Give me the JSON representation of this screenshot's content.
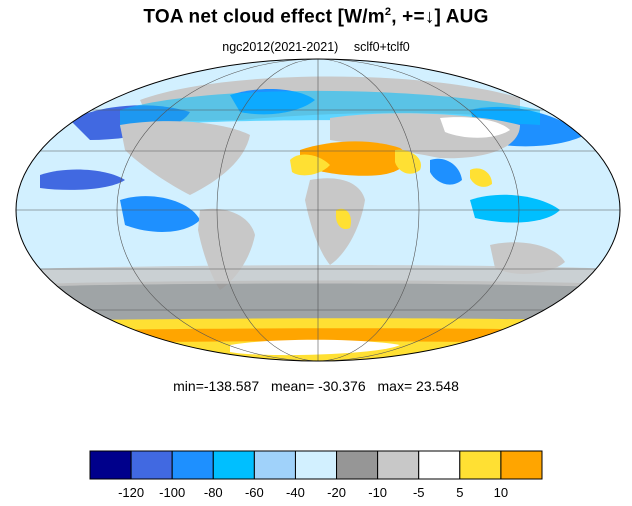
{
  "title": {
    "main": "TOA net cloud effect [W/m",
    "sup": "2",
    "rest": ", +=↓]  AUG"
  },
  "subtitle": {
    "left": "ngc2012(2021-2021)",
    "right": "sclf0+tclf0"
  },
  "stats": {
    "min": "min=-138.587",
    "mean": "mean= -30.376",
    "max": "max=  23.548"
  },
  "colorbar": {
    "colors": [
      "#00008b",
      "#4169e1",
      "#1e90ff",
      "#00bfff",
      "#a0d2fa",
      "#d2f0ff",
      "#969696",
      "#c8c8c8",
      "#ffffff",
      "#ffe033",
      "#ffa500"
    ],
    "labels": [
      "-120",
      "-100",
      "-80",
      "-60",
      "-40",
      "-20",
      "-10",
      "-5",
      "5",
      "10"
    ]
  },
  "map": {
    "projection": "mollweide",
    "ocean_color": "#d2f0ff"
  }
}
